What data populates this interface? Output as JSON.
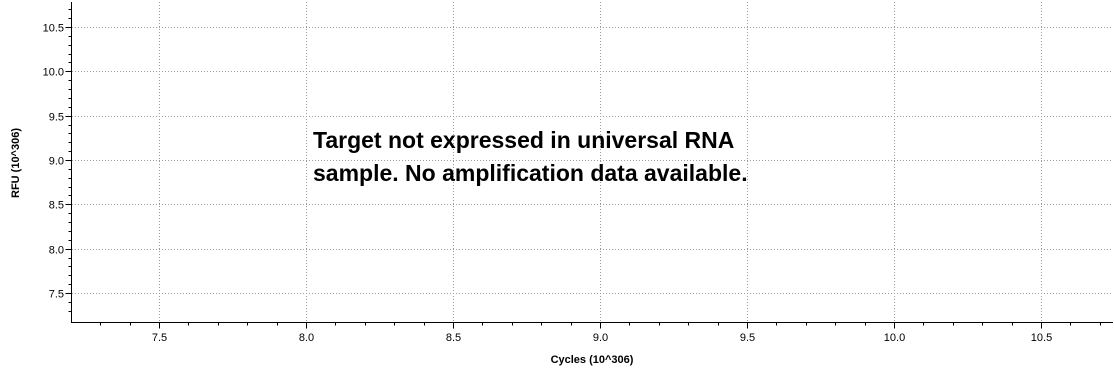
{
  "chart_data": {
    "type": "line",
    "title": "",
    "xlabel": "Cycles (10^306)",
    "ylabel": "RFU (10^306)",
    "xlim": [
      7.2,
      10.75
    ],
    "ylim": [
      7.2,
      10.72
    ],
    "x_ticks": [
      "7.5",
      "8.0",
      "8.5",
      "9.0",
      "9.5",
      "10.0",
      "10.5"
    ],
    "y_ticks": [
      "10.5",
      "10.0",
      "9.5",
      "9.0",
      "8.5",
      "8.0",
      "7.5"
    ],
    "x_tick_values": [
      7.5,
      8.0,
      8.5,
      9.0,
      9.5,
      10.0,
      10.5
    ],
    "y_tick_values": [
      10.5,
      10.0,
      9.5,
      9.0,
      8.5,
      8.0,
      7.5
    ],
    "grid": true,
    "series": [],
    "annotation": {
      "line1": "Target not expressed in universal RNA",
      "line2": "sample.  No amplification data available."
    }
  },
  "colors": {
    "axis": "#000000",
    "grid": "#9a9a9a",
    "background": "#ffffff"
  }
}
